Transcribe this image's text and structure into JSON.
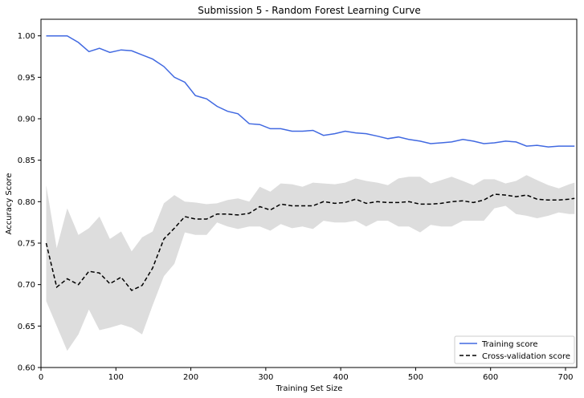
{
  "chart_data": {
    "type": "line",
    "title": "Submission 5 - Random Forest Learning Curve",
    "xlabel": "Training Set Size",
    "ylabel": "Accuracy Score",
    "xlim": [
      0,
      715
    ],
    "ylim": [
      0.6,
      1.02
    ],
    "xticks": [
      0,
      100,
      200,
      300,
      400,
      500,
      600,
      700
    ],
    "yticks": [
      0.6,
      0.65,
      0.7,
      0.75,
      0.8,
      0.85,
      0.9,
      0.95,
      1.0
    ],
    "grid": false,
    "legend_position": "lower-right",
    "x": [
      7,
      21,
      35,
      50,
      64,
      78,
      92,
      107,
      121,
      135,
      149,
      164,
      178,
      192,
      206,
      221,
      235,
      249,
      263,
      278,
      292,
      306,
      320,
      335,
      349,
      363,
      377,
      392,
      406,
      420,
      434,
      449,
      463,
      477,
      491,
      506,
      520,
      534,
      548,
      563,
      577,
      591,
      605,
      620,
      634,
      648,
      662,
      677,
      691,
      705,
      712
    ],
    "series": [
      {
        "name": "Training score",
        "color": "#4169e1",
        "style": "solid",
        "values": [
          1.0,
          1.0,
          1.0,
          0.992,
          0.981,
          0.985,
          0.98,
          0.983,
          0.982,
          0.977,
          0.972,
          0.963,
          0.95,
          0.944,
          0.928,
          0.924,
          0.915,
          0.909,
          0.906,
          0.894,
          0.893,
          0.888,
          0.888,
          0.885,
          0.885,
          0.886,
          0.88,
          0.882,
          0.885,
          0.883,
          0.882,
          0.879,
          0.876,
          0.878,
          0.875,
          0.873,
          0.87,
          0.871,
          0.872,
          0.875,
          0.873,
          0.87,
          0.871,
          0.873,
          0.872,
          0.867,
          0.868,
          0.866,
          0.867,
          0.867,
          0.867
        ]
      },
      {
        "name": "Cross-validation score",
        "color": "#000000",
        "style": "dashed",
        "values": [
          0.75,
          0.697,
          0.707,
          0.7,
          0.716,
          0.714,
          0.701,
          0.709,
          0.693,
          0.699,
          0.72,
          0.755,
          0.768,
          0.782,
          0.779,
          0.779,
          0.785,
          0.785,
          0.784,
          0.786,
          0.794,
          0.79,
          0.797,
          0.795,
          0.795,
          0.795,
          0.8,
          0.798,
          0.799,
          0.803,
          0.798,
          0.8,
          0.799,
          0.799,
          0.8,
          0.797,
          0.797,
          0.798,
          0.8,
          0.801,
          0.799,
          0.802,
          0.809,
          0.808,
          0.806,
          0.808,
          0.803,
          0.802,
          0.802,
          0.803,
          0.804
        ]
      }
    ],
    "band": {
      "color": "#dddddd",
      "lower": [
        0.68,
        0.65,
        0.62,
        0.64,
        0.67,
        0.645,
        0.648,
        0.652,
        0.648,
        0.64,
        0.675,
        0.71,
        0.725,
        0.763,
        0.76,
        0.76,
        0.775,
        0.77,
        0.767,
        0.77,
        0.77,
        0.765,
        0.773,
        0.768,
        0.77,
        0.767,
        0.777,
        0.775,
        0.775,
        0.777,
        0.77,
        0.777,
        0.777,
        0.77,
        0.77,
        0.763,
        0.772,
        0.77,
        0.77,
        0.777,
        0.777,
        0.777,
        0.792,
        0.795,
        0.785,
        0.783,
        0.78,
        0.783,
        0.787,
        0.785,
        0.785
      ],
      "upper": [
        0.82,
        0.744,
        0.792,
        0.76,
        0.768,
        0.782,
        0.755,
        0.764,
        0.74,
        0.757,
        0.764,
        0.798,
        0.808,
        0.8,
        0.799,
        0.797,
        0.798,
        0.802,
        0.804,
        0.8,
        0.818,
        0.812,
        0.822,
        0.821,
        0.818,
        0.823,
        0.822,
        0.821,
        0.823,
        0.828,
        0.825,
        0.823,
        0.82,
        0.828,
        0.83,
        0.83,
        0.822,
        0.826,
        0.83,
        0.825,
        0.82,
        0.827,
        0.827,
        0.822,
        0.825,
        0.832,
        0.826,
        0.82,
        0.816,
        0.821,
        0.823
      ]
    }
  }
}
